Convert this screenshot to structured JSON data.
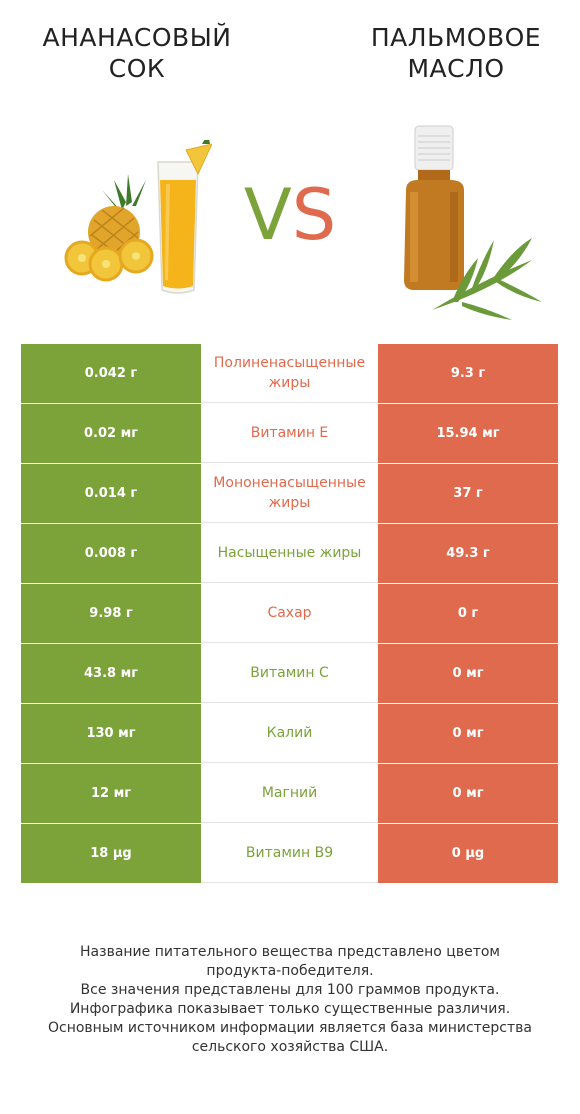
{
  "header": {
    "left_title": "АНАНАСОВЫЙ СОК",
    "right_title": "ПАЛЬМОВОЕ МАСЛО",
    "vs_v": "V",
    "vs_s": "S"
  },
  "colors": {
    "left_accent": "#7ba33a",
    "right_accent": "#e06a4d"
  },
  "illustrations": {
    "left": "pineapple-juice-icon",
    "right": "palm-oil-bottle-icon"
  },
  "rows": [
    {
      "left": "0.042 г",
      "name": "Полиненасыщенные жиры",
      "right": "9.3 г",
      "winner": "right"
    },
    {
      "left": "0.02 мг",
      "name": "Витамин E",
      "right": "15.94 мг",
      "winner": "right"
    },
    {
      "left": "0.014 г",
      "name": "Мононенасыщенные жиры",
      "right": "37 г",
      "winner": "right"
    },
    {
      "left": "0.008 г",
      "name": "Насыщенные жиры",
      "right": "49.3 г",
      "winner": "left"
    },
    {
      "left": "9.98 г",
      "name": "Сахар",
      "right": "0 г",
      "winner": "right"
    },
    {
      "left": "43.8 мг",
      "name": "Витамин C",
      "right": "0 мг",
      "winner": "left"
    },
    {
      "left": "130 мг",
      "name": "Калий",
      "right": "0 мг",
      "winner": "left"
    },
    {
      "left": "12 мг",
      "name": "Магний",
      "right": "0 мг",
      "winner": "left"
    },
    {
      "left": "18 µg",
      "name": "Витамин B9",
      "right": "0 µg",
      "winner": "left"
    }
  ],
  "footer": {
    "line1": "Название питательного вещества представлено цветом",
    "line2": "продукта-победителя.",
    "line3": "Все значения представлены для 100 граммов продукта.",
    "line4": "Инфографика показывает только существенные различия.",
    "line5": "Основным источником информации является база министерства",
    "line6": "сельского хозяйства США."
  }
}
